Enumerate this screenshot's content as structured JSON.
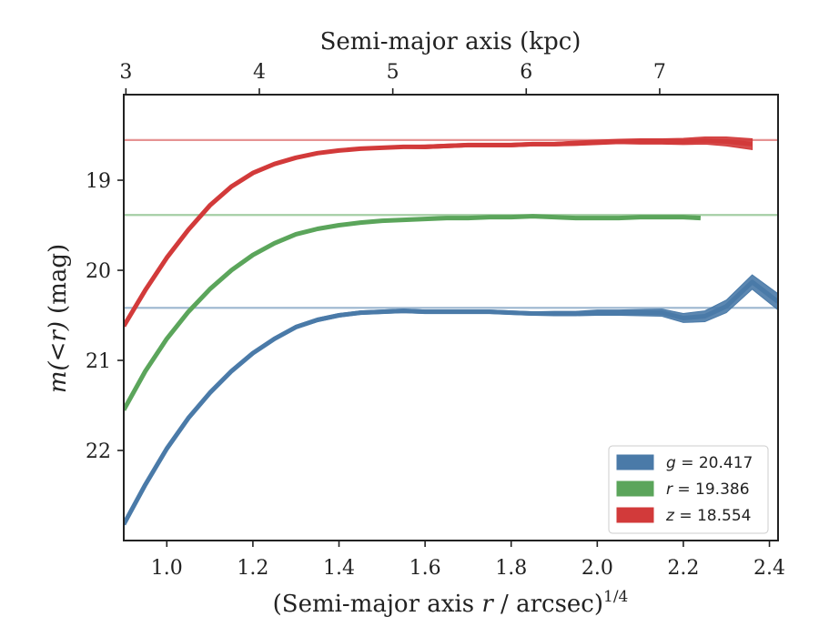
{
  "chart_data": {
    "type": "area",
    "title": "",
    "xlabel_prefix": "(Semi-major axis ",
    "xlabel_var": "r",
    "xlabel_suffix": " / arcsec)",
    "xlabel_exponent": "1/4",
    "ylabel_prefix": "m(",
    "ylabel_op": "<",
    "ylabel_var": "r",
    "ylabel_close": ")",
    "ylabel_unit": "(mag)",
    "top_xlabel": "Semi-major axis (kpc)",
    "xlim": [
      0.9,
      2.42
    ],
    "ylim": [
      23.0,
      18.05
    ],
    "y_inverted": true,
    "xticks": [
      1.0,
      1.2,
      1.4,
      1.6,
      1.8,
      2.0,
      2.2,
      2.4
    ],
    "xtick_labels": [
      "1.0",
      "1.2",
      "1.4",
      "1.6",
      "1.8",
      "2.0",
      "2.2",
      "2.4"
    ],
    "yticks": [
      19,
      20,
      21,
      22
    ],
    "ytick_labels": [
      "19",
      "20",
      "21",
      "22"
    ],
    "top_ticks_kpc": [
      3,
      4,
      5,
      6,
      7
    ],
    "top_tick_labels": [
      "3",
      "4",
      "5",
      "6",
      "7"
    ],
    "top_tick_positions_x": [
      0.905,
      1.215,
      1.525,
      1.835,
      2.145
    ],
    "legend_position": "lower-right",
    "series": [
      {
        "name": "g",
        "label_var": "g",
        "label_value": "= 20.417",
        "color": "#4a7aa8",
        "asymptote": 20.417,
        "x": [
          0.9,
          0.95,
          1.0,
          1.05,
          1.1,
          1.15,
          1.2,
          1.25,
          1.3,
          1.35,
          1.4,
          1.45,
          1.5,
          1.55,
          1.6,
          1.65,
          1.7,
          1.75,
          1.8,
          1.85,
          1.9,
          1.95,
          2.0,
          2.05,
          2.1,
          2.15,
          2.2,
          2.25,
          2.3,
          2.36,
          2.42
        ],
        "y": [
          22.82,
          22.38,
          21.98,
          21.64,
          21.36,
          21.12,
          20.92,
          20.76,
          20.63,
          20.55,
          20.5,
          20.47,
          20.46,
          20.45,
          20.46,
          20.46,
          20.46,
          20.46,
          20.47,
          20.48,
          20.48,
          20.48,
          20.47,
          20.47,
          20.47,
          20.47,
          20.53,
          20.51,
          20.4,
          20.13,
          20.35
        ],
        "half_width": [
          0.02,
          0.02,
          0.02,
          0.02,
          0.02,
          0.02,
          0.02,
          0.02,
          0.02,
          0.02,
          0.02,
          0.02,
          0.02,
          0.02,
          0.02,
          0.02,
          0.02,
          0.02,
          0.02,
          0.02,
          0.025,
          0.025,
          0.03,
          0.03,
          0.035,
          0.04,
          0.05,
          0.06,
          0.07,
          0.08,
          0.09
        ]
      },
      {
        "name": "r",
        "label_var": "r",
        "label_value": "= 19.386",
        "color": "#5ba55b",
        "asymptote": 19.386,
        "x": [
          0.9,
          0.95,
          1.0,
          1.05,
          1.1,
          1.15,
          1.2,
          1.25,
          1.3,
          1.35,
          1.4,
          1.45,
          1.5,
          1.55,
          1.6,
          1.65,
          1.7,
          1.75,
          1.8,
          1.85,
          1.9,
          1.95,
          2.0,
          2.05,
          2.1,
          2.15,
          2.2,
          2.24
        ],
        "y": [
          21.55,
          21.12,
          20.76,
          20.46,
          20.21,
          20.0,
          19.83,
          19.7,
          19.6,
          19.54,
          19.5,
          19.47,
          19.45,
          19.44,
          19.43,
          19.42,
          19.42,
          19.41,
          19.41,
          19.4,
          19.41,
          19.42,
          19.42,
          19.42,
          19.41,
          19.41,
          19.41,
          19.42
        ]
      },
      {
        "name": "z",
        "label_var": "z",
        "label_value": "= 18.554",
        "color": "#d23a3a",
        "asymptote": 18.554,
        "x": [
          0.9,
          0.95,
          1.0,
          1.05,
          1.1,
          1.15,
          1.2,
          1.25,
          1.3,
          1.35,
          1.4,
          1.45,
          1.5,
          1.55,
          1.6,
          1.65,
          1.7,
          1.75,
          1.8,
          1.85,
          1.9,
          1.95,
          2.0,
          2.05,
          2.1,
          2.15,
          2.2,
          2.25,
          2.3,
          2.36
        ],
        "y": [
          20.62,
          20.22,
          19.86,
          19.55,
          19.28,
          19.07,
          18.92,
          18.82,
          18.75,
          18.7,
          18.67,
          18.65,
          18.64,
          18.63,
          18.63,
          18.62,
          18.61,
          18.61,
          18.61,
          18.6,
          18.6,
          18.59,
          18.58,
          18.57,
          18.57,
          18.57,
          18.57,
          18.56,
          18.57,
          18.6
        ],
        "half_width": [
          0.015,
          0.015,
          0.015,
          0.015,
          0.015,
          0.015,
          0.015,
          0.015,
          0.015,
          0.015,
          0.015,
          0.015,
          0.015,
          0.015,
          0.02,
          0.02,
          0.02,
          0.02,
          0.02,
          0.02,
          0.02,
          0.025,
          0.025,
          0.025,
          0.03,
          0.03,
          0.035,
          0.04,
          0.05,
          0.06
        ]
      }
    ]
  }
}
